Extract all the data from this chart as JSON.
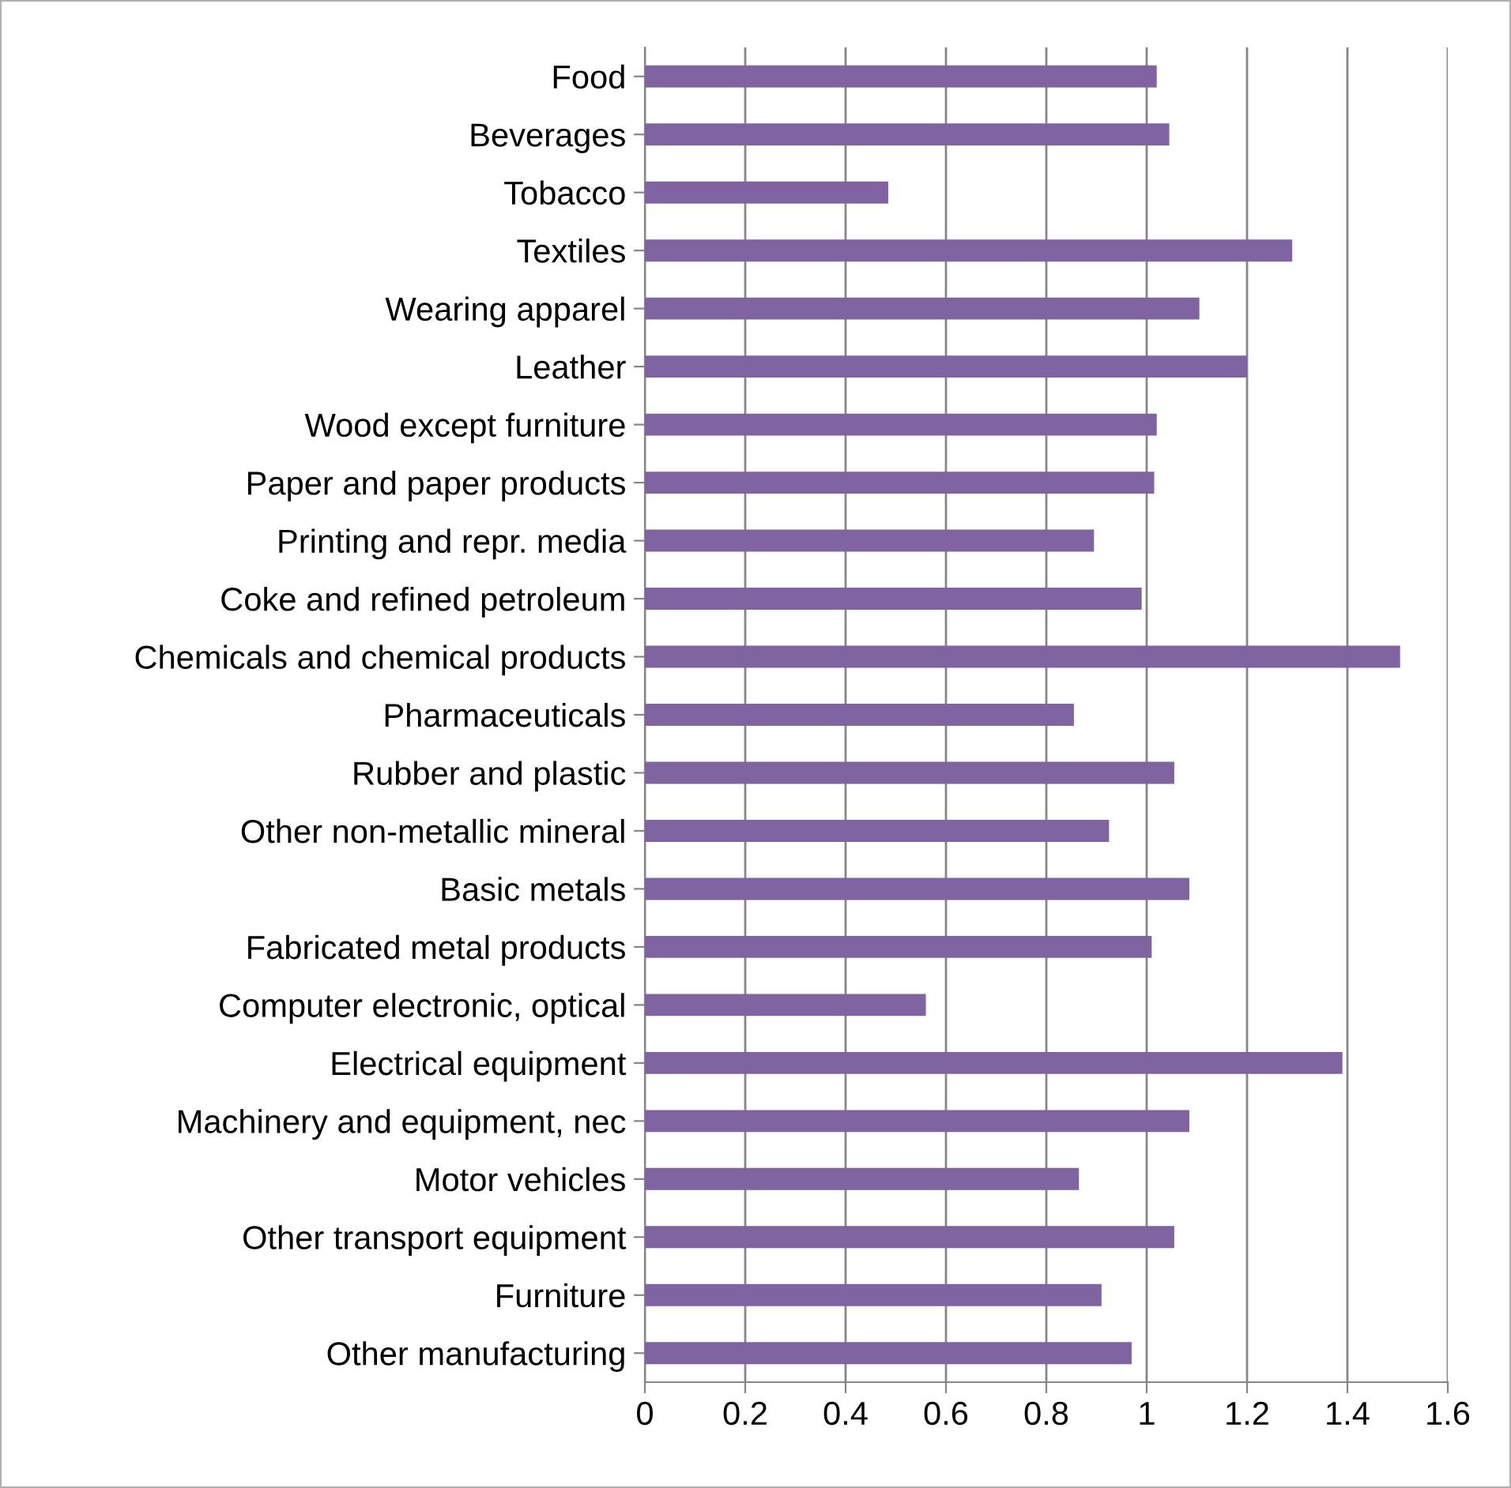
{
  "chart_data": {
    "type": "bar",
    "orientation": "horizontal",
    "categories": [
      "Food",
      "Beverages",
      "Tobacco",
      "Textiles",
      "Wearing apparel",
      "Leather",
      "Wood except furniture",
      "Paper and paper products",
      "Printing and repr. media",
      "Coke and refined petroleum",
      "Chemicals and chemical products",
      "Pharmaceuticals",
      "Rubber and plastic",
      "Other non-metallic mineral",
      "Basic metals",
      "Fabricated metal products",
      "Computer electronic, optical",
      "Electrical equipment",
      "Machinery and equipment, nec",
      "Motor vehicles",
      "Other transport equipment",
      "Furniture",
      "Other manufacturing"
    ],
    "values": [
      1.02,
      1.045,
      0.485,
      1.29,
      1.105,
      1.2,
      1.02,
      1.015,
      0.895,
      0.99,
      1.505,
      0.855,
      1.055,
      0.925,
      1.085,
      1.01,
      0.56,
      1.39,
      1.085,
      0.865,
      1.055,
      0.91,
      0.97
    ],
    "color": "#8064a2",
    "xlim": [
      0,
      1.6
    ],
    "xticks": [
      0,
      0.2,
      0.4,
      0.6,
      0.8,
      1,
      1.2,
      1.4,
      1.6
    ],
    "grid": "x"
  }
}
